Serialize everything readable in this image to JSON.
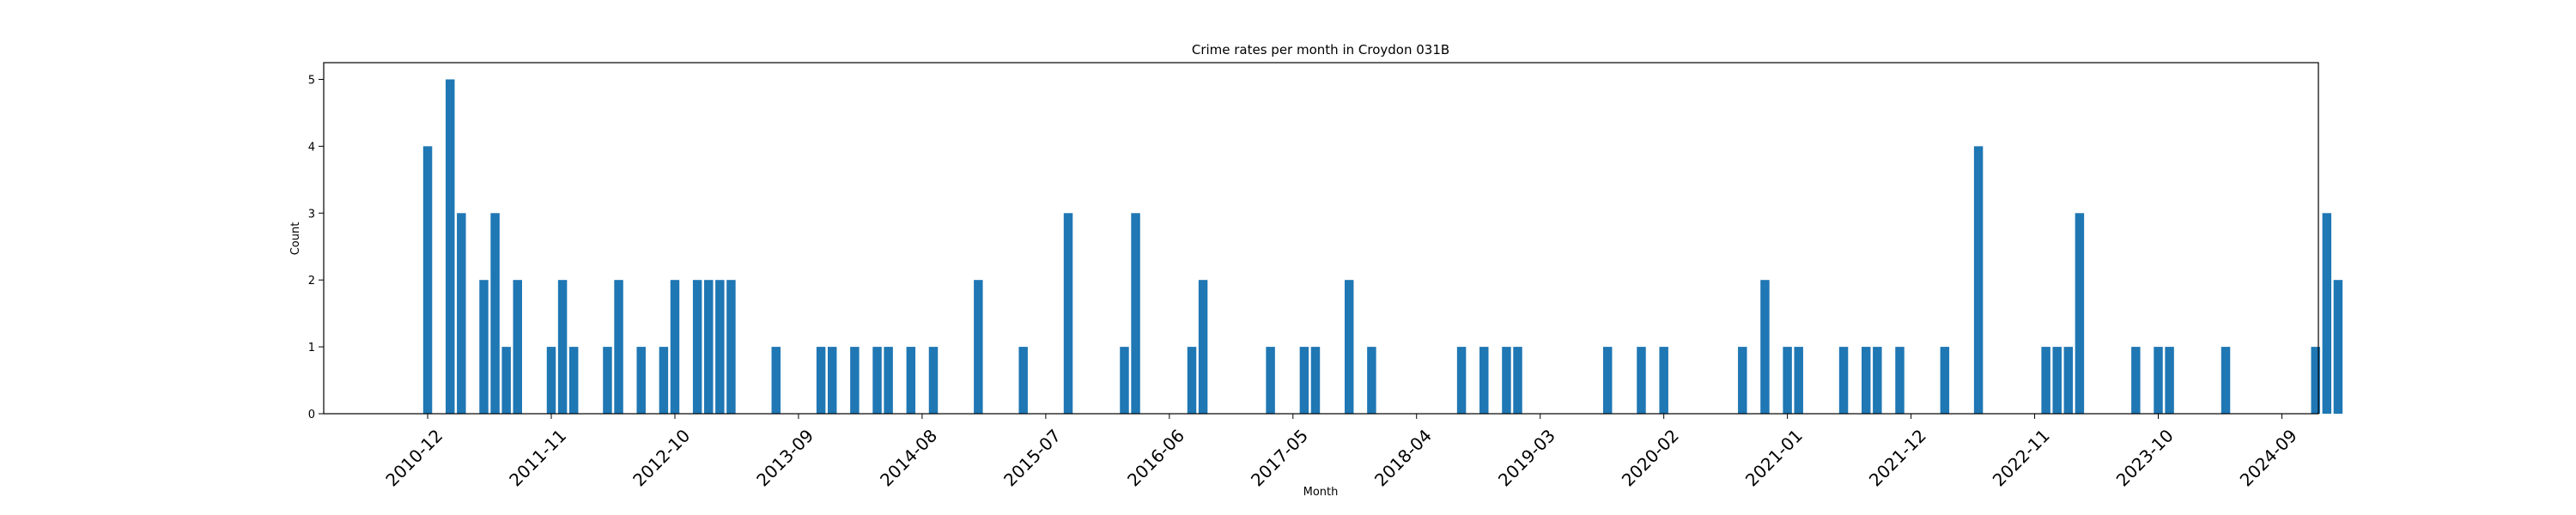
{
  "chart_data": {
    "type": "bar",
    "title": "Crime rates per month in Croydon 031B",
    "xlabel": "Month",
    "ylabel": "Count",
    "ylim": [
      0,
      5.25
    ],
    "yticks": [
      0,
      1,
      2,
      3,
      4,
      5
    ],
    "xlim": [
      -9.25,
      168.25
    ],
    "xtick_positions": [
      0,
      11,
      22,
      33,
      44,
      55,
      66,
      77,
      88,
      99,
      110,
      121,
      132,
      143,
      154,
      165
    ],
    "xtick_labels": [
      "2010-12",
      "2011-11",
      "2012-10",
      "2013-09",
      "2014-08",
      "2015-07",
      "2016-06",
      "2017-05",
      "2018-04",
      "2019-03",
      "2020-02",
      "2021-01",
      "2021-12",
      "2022-11",
      "2023-10",
      "2024-09"
    ],
    "bar_color": "#1f77b4",
    "bar_width_months": 0.8,
    "x_meaning": "months since 2010-12",
    "bars": [
      {
        "x": 0,
        "value": 4
      },
      {
        "x": 2,
        "value": 5
      },
      {
        "x": 3,
        "value": 3
      },
      {
        "x": 5,
        "value": 2
      },
      {
        "x": 6,
        "value": 3
      },
      {
        "x": 7,
        "value": 1
      },
      {
        "x": 8,
        "value": 2
      },
      {
        "x": 11,
        "value": 1
      },
      {
        "x": 12,
        "value": 2
      },
      {
        "x": 13,
        "value": 1
      },
      {
        "x": 16,
        "value": 1
      },
      {
        "x": 17,
        "value": 2
      },
      {
        "x": 19,
        "value": 1
      },
      {
        "x": 21,
        "value": 1
      },
      {
        "x": 22,
        "value": 2
      },
      {
        "x": 24,
        "value": 2
      },
      {
        "x": 25,
        "value": 2
      },
      {
        "x": 26,
        "value": 2
      },
      {
        "x": 27,
        "value": 2
      },
      {
        "x": 31,
        "value": 1
      },
      {
        "x": 35,
        "value": 1
      },
      {
        "x": 36,
        "value": 1
      },
      {
        "x": 38,
        "value": 1
      },
      {
        "x": 40,
        "value": 1
      },
      {
        "x": 41,
        "value": 1
      },
      {
        "x": 43,
        "value": 1
      },
      {
        "x": 45,
        "value": 1
      },
      {
        "x": 49,
        "value": 2
      },
      {
        "x": 53,
        "value": 1
      },
      {
        "x": 57,
        "value": 3
      },
      {
        "x": 62,
        "value": 1
      },
      {
        "x": 63,
        "value": 3
      },
      {
        "x": 68,
        "value": 1
      },
      {
        "x": 69,
        "value": 2
      },
      {
        "x": 75,
        "value": 1
      },
      {
        "x": 78,
        "value": 1
      },
      {
        "x": 79,
        "value": 1
      },
      {
        "x": 82,
        "value": 2
      },
      {
        "x": 84,
        "value": 1
      },
      {
        "x": 92,
        "value": 1
      },
      {
        "x": 94,
        "value": 1
      },
      {
        "x": 96,
        "value": 1
      },
      {
        "x": 97,
        "value": 1
      },
      {
        "x": 105,
        "value": 1
      },
      {
        "x": 108,
        "value": 1
      },
      {
        "x": 110,
        "value": 1
      },
      {
        "x": 117,
        "value": 1
      },
      {
        "x": 119,
        "value": 2
      },
      {
        "x": 121,
        "value": 1
      },
      {
        "x": 122,
        "value": 1
      },
      {
        "x": 126,
        "value": 1
      },
      {
        "x": 128,
        "value": 1
      },
      {
        "x": 129,
        "value": 1
      },
      {
        "x": 131,
        "value": 1
      },
      {
        "x": 135,
        "value": 1
      },
      {
        "x": 138,
        "value": 4
      },
      {
        "x": 144,
        "value": 1
      },
      {
        "x": 145,
        "value": 1
      },
      {
        "x": 146,
        "value": 1
      },
      {
        "x": 147,
        "value": 3
      },
      {
        "x": 152,
        "value": 1
      },
      {
        "x": 154,
        "value": 1
      },
      {
        "x": 155,
        "value": 1
      },
      {
        "x": 160,
        "value": 1
      },
      {
        "x": 168,
        "value": 1
      },
      {
        "x": 169,
        "value": 3
      },
      {
        "x": 170,
        "value": 2
      }
    ]
  }
}
